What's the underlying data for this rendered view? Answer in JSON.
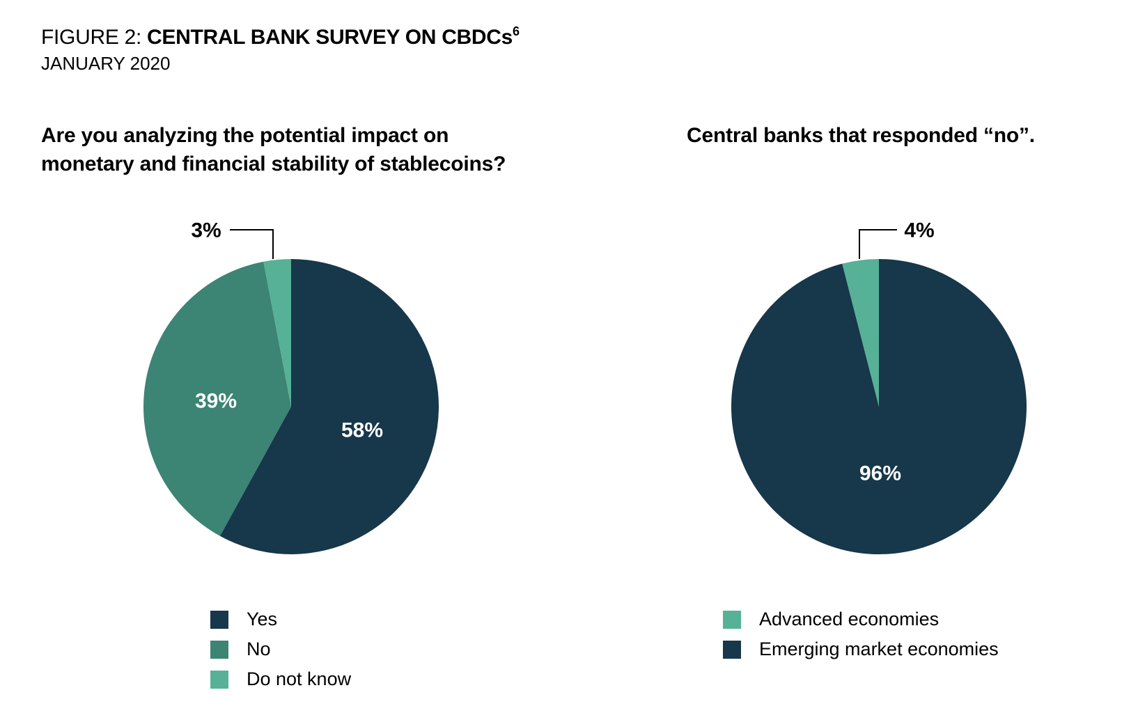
{
  "figure": {
    "title_prefix": "FIGURE 2: ",
    "title_main": "CENTRAL BANK SURVEY ON CBDCs",
    "title_footnote": "6",
    "subtitle": "JANUARY 2020"
  },
  "colors": {
    "dark_navy": "#17374a",
    "mid_teal": "#3c8474",
    "light_teal": "#56b197",
    "leader_line": "#000000",
    "label_light": "#ffffff",
    "label_dark": "#000000"
  },
  "chart_data": [
    {
      "type": "pie",
      "title": "Are you analyzing the potential impact on monetary and financial stability of stablecoins?",
      "title_lines": [
        "Are you analyzing the potential impact on",
        "monetary and financial stability of stablecoins?"
      ],
      "start_angle_deg": 0,
      "direction": "clockwise",
      "slices": [
        {
          "label": "Yes",
          "value": 58,
          "display": "58%",
          "color": "#17374a"
        },
        {
          "label": "No",
          "value": 39,
          "display": "39%",
          "color": "#3c8474"
        },
        {
          "label": "Do not know",
          "value": 3,
          "display": "3%",
          "color": "#56b197"
        }
      ],
      "legend": [
        "Yes",
        "No",
        "Do not know"
      ],
      "legend_position": "bottom"
    },
    {
      "type": "pie",
      "title": "Central banks that responded “no”.",
      "title_lines": [
        "Central banks that responded “no”."
      ],
      "start_angle_deg": 0,
      "direction": "clockwise",
      "slices": [
        {
          "label": "Emerging market economies",
          "value": 96,
          "display": "96%",
          "color": "#17374a"
        },
        {
          "label": "Advanced economies",
          "value": 4,
          "display": "4%",
          "color": "#56b197"
        }
      ],
      "legend": [
        "Advanced economies",
        "Emerging market economies"
      ],
      "legend_position": "bottom"
    }
  ]
}
